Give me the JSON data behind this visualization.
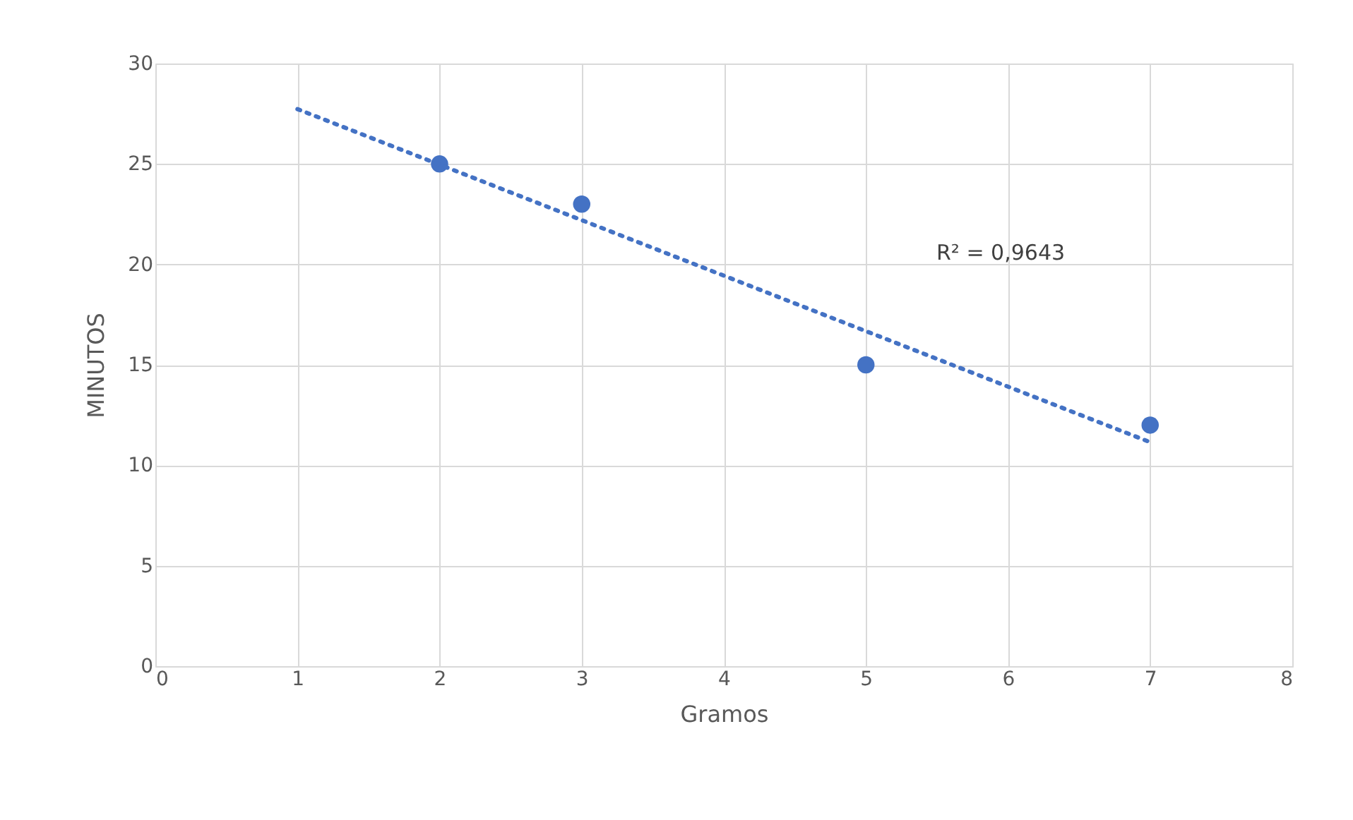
{
  "chart_data": {
    "type": "scatter",
    "xlabel": "Gramos",
    "ylabel": "MINUTOS",
    "x": [
      2,
      3,
      5,
      7
    ],
    "series": [
      {
        "color": "#4472c4",
        "values": [
          25,
          23,
          15,
          12
        ],
        "marker": "circle"
      },
      {
        "type": "line",
        "color": "#4472c4",
        "x": [
          1,
          7
        ],
        "values": [
          27.73,
          11.15
        ],
        "line_style": "dotted"
      }
    ],
    "xlim": [
      0,
      8
    ],
    "xticks": [
      0,
      1,
      2,
      3,
      4,
      5,
      6,
      7,
      8
    ],
    "ylim": [
      0,
      30
    ],
    "yticks": [
      0,
      5,
      10,
      15,
      20,
      25,
      30
    ],
    "grid": true,
    "legend": false,
    "annotations": [
      "R² = 0,9643"
    ]
  }
}
